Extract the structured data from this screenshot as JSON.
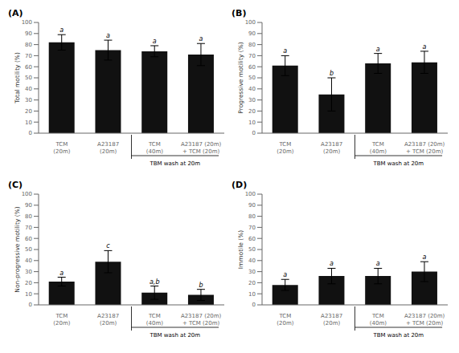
{
  "chart_data": [
    {
      "type": "bar",
      "title": "(A)",
      "y_label": "Total motility (%)",
      "categories": [
        "TCM\n(20m)",
        "A23187\n(20m)",
        "TCM\n(40m)",
        "A23187 (20m)\n+ TCM (20m)"
      ],
      "values": [
        82,
        75,
        74,
        71
      ],
      "errors": [
        7,
        9,
        5,
        10
      ],
      "bar_labels": [
        "a",
        "a",
        "a",
        "a"
      ],
      "annotation": "TBM wash at 20m",
      "color": "#111111",
      "grid": false,
      "ylim": [
        0,
        100
      ],
      "yticks": [
        0,
        10,
        20,
        30,
        40,
        50,
        60,
        70,
        80,
        90,
        100
      ]
    },
    {
      "type": "bar",
      "title": "(B)",
      "y_label": "Progressive motility (%)",
      "categories": [
        "TCM\n(20m)",
        "A23187\n(20m)",
        "TCM\n(40m)",
        "A23187 (20m)\n+ TCM (20m)"
      ],
      "values": [
        61,
        35,
        63,
        64
      ],
      "errors": [
        9,
        15,
        9,
        10
      ],
      "bar_labels": [
        "a",
        "b",
        "a",
        "a"
      ],
      "annotation": "TBM wash at 20m",
      "color": "#111111",
      "grid": false,
      "ylim": [
        0,
        100
      ],
      "yticks": [
        0,
        10,
        20,
        30,
        40,
        50,
        60,
        70,
        80,
        90,
        100
      ]
    },
    {
      "type": "bar",
      "title": "(C)",
      "y_label": "Non-progressive motility (%)",
      "categories": [
        "TCM\n(20m)",
        "A23187\n(20m)",
        "TCM\n(40m)",
        "A23187 (20m)\n+ TCM (20m)"
      ],
      "values": [
        21,
        39,
        11,
        9
      ],
      "errors": [
        4,
        10,
        6,
        5
      ],
      "bar_labels": [
        "a",
        "c",
        "a,b",
        "b"
      ],
      "annotation": "TBM wash at 20m",
      "color": "#111111",
      "grid": false,
      "ylim": [
        0,
        100
      ],
      "yticks": [
        0,
        10,
        20,
        30,
        40,
        50,
        60,
        70,
        80,
        90,
        100
      ]
    },
    {
      "type": "bar",
      "title": "(D)",
      "y_label": "Immotile (%)",
      "categories": [
        "TCM\n(20m)",
        "A23187\n(20m)",
        "TCM\n(40m)",
        "A23187 (20m)\n+ TCM (20m)"
      ],
      "values": [
        18,
        26,
        26,
        30
      ],
      "errors": [
        5,
        7,
        7,
        9
      ],
      "bar_labels": [
        "a",
        "a",
        "a",
        "a"
      ],
      "annotation": "TBM wash at 20m",
      "color": "#111111",
      "grid": false,
      "ylim": [
        0,
        100
      ],
      "yticks": [
        0,
        10,
        20,
        30,
        40,
        50,
        60,
        70,
        80,
        90,
        100
      ]
    }
  ]
}
